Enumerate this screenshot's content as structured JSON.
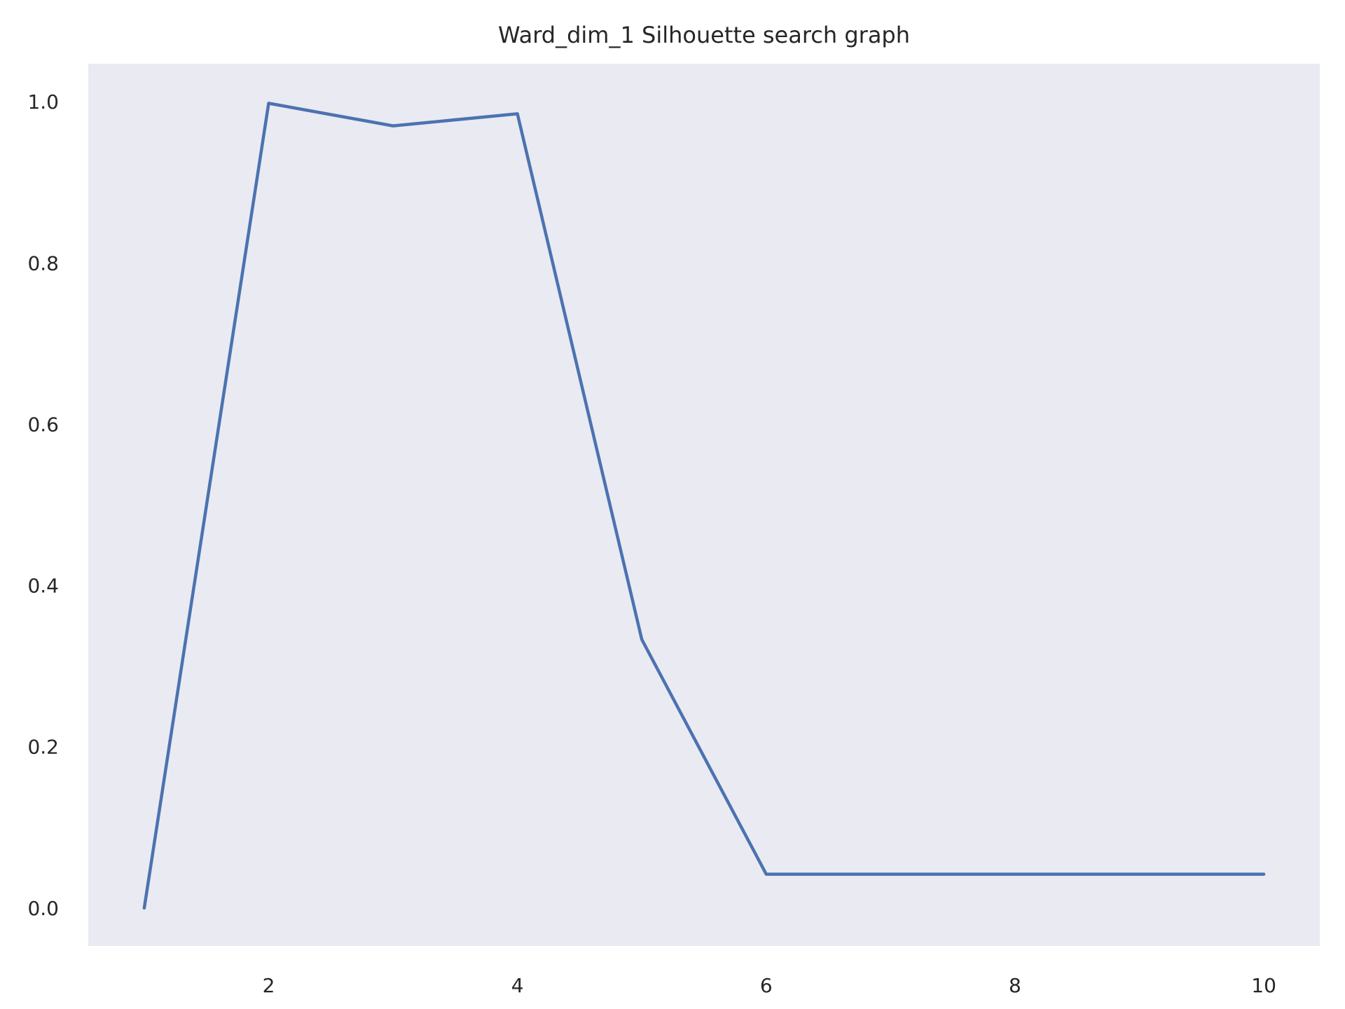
{
  "chart_data": {
    "type": "line",
    "title": "Ward_dim_1 Silhouette search graph",
    "xlabel": "",
    "ylabel": "",
    "x": [
      1,
      2,
      3,
      4,
      5,
      6,
      7,
      8,
      9,
      10
    ],
    "series": [
      {
        "values": [
          0.0,
          0.998,
          0.97,
          0.985,
          0.333,
          0.042,
          0.042,
          0.042,
          0.042,
          0.042
        ]
      }
    ],
    "xlim": [
      0.55,
      10.45
    ],
    "ylim": [
      -0.047,
      1.047
    ],
    "x_ticks": [
      2,
      4,
      6,
      8,
      10
    ],
    "x_tick_labels": [
      "2",
      "4",
      "6",
      "8",
      "10"
    ],
    "y_ticks": [
      0.0,
      0.2,
      0.4,
      0.6,
      0.8,
      1.0
    ],
    "y_tick_labels": [
      "0.0",
      "0.2",
      "0.4",
      "0.6",
      "0.8",
      "1.0"
    ],
    "grid": false,
    "colors": {
      "line": "#4c72b0",
      "plot_background": "#eaeaf2",
      "text": "#262626"
    }
  }
}
